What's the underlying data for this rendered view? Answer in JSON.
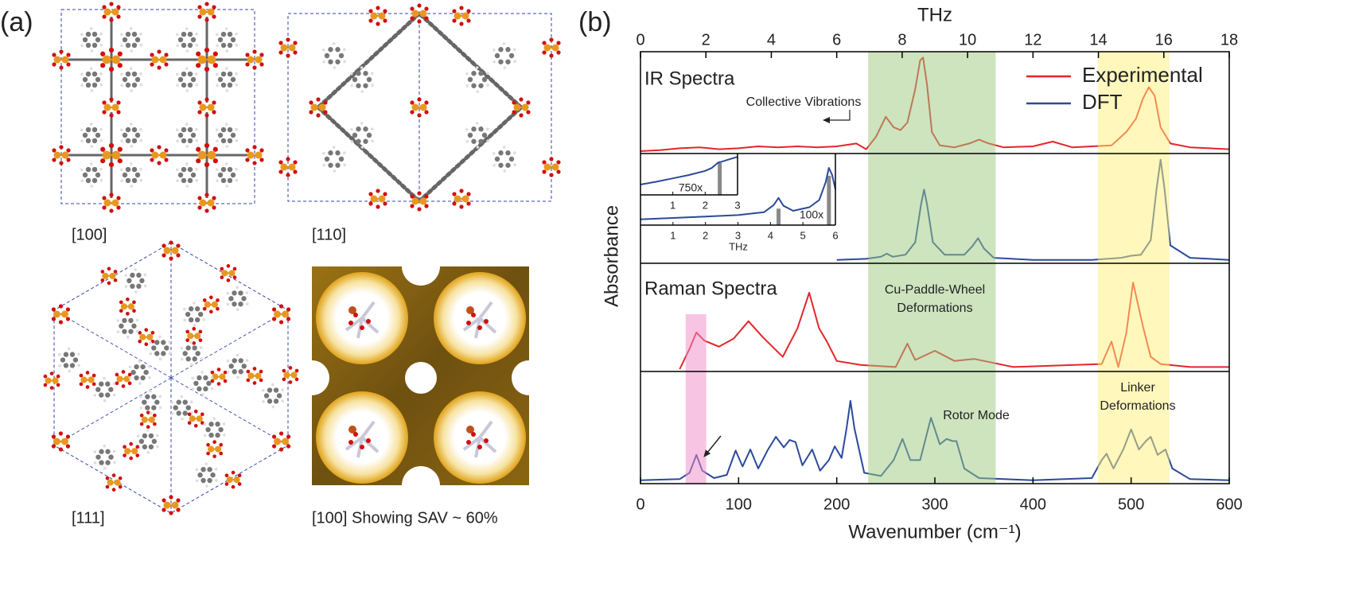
{
  "panel_a": {
    "label": "(a)",
    "views": [
      "[100]",
      "[110]",
      "[111]",
      "[100] Showing SAV ~ 60%"
    ]
  },
  "chart_data": {
    "type": "line",
    "label": "(b)",
    "xlabel": "Wavenumber (cm⁻¹)",
    "x2label": "THz",
    "ylabel": "Absorbance",
    "xlim": [
      0,
      600
    ],
    "xticks": [
      0,
      100,
      200,
      300,
      400,
      500,
      600
    ],
    "x2lim": [
      0,
      18
    ],
    "x2ticks": [
      0,
      2,
      4,
      6,
      8,
      10,
      12,
      14,
      16,
      18
    ],
    "panel_labels": [
      "IR Spectra",
      "Raman Spectra"
    ],
    "legend": "upper right",
    "series": [
      {
        "name": "Experimental",
        "color": "#e3262a",
        "ir": {
          "x": [
            0,
            20,
            40,
            60,
            80,
            100,
            120,
            140,
            160,
            180,
            200,
            220,
            230,
            240,
            250,
            258,
            265,
            272,
            280,
            285,
            288,
            292,
            297,
            305,
            320,
            335,
            345,
            355,
            370,
            400,
            420,
            440,
            460,
            480,
            495,
            505,
            512,
            518,
            524,
            530,
            540,
            560,
            580,
            600
          ],
          "values": [
            0.0,
            0.01,
            0.03,
            0.04,
            0.02,
            0.03,
            0.05,
            0.04,
            0.05,
            0.04,
            0.05,
            0.08,
            0.02,
            0.15,
            0.36,
            0.25,
            0.22,
            0.3,
            0.65,
            0.95,
            0.98,
            0.7,
            0.2,
            0.06,
            0.04,
            0.08,
            0.12,
            0.08,
            0.04,
            0.05,
            0.1,
            0.04,
            0.05,
            0.06,
            0.2,
            0.34,
            0.55,
            0.67,
            0.58,
            0.25,
            0.08,
            0.04,
            0.03,
            0.02
          ]
        },
        "raman": {
          "x": [
            40,
            50,
            57,
            65,
            80,
            95,
            110,
            125,
            145,
            160,
            172,
            182,
            190,
            200,
            225,
            260,
            272,
            280,
            300,
            320,
            340,
            380,
            440,
            470,
            480,
            487,
            495,
            502,
            512,
            520,
            530,
            560,
            600
          ],
          "values": [
            0.0,
            0.2,
            0.36,
            0.28,
            0.22,
            0.3,
            0.47,
            0.31,
            0.12,
            0.4,
            0.75,
            0.4,
            0.27,
            0.08,
            0.04,
            0.02,
            0.25,
            0.09,
            0.18,
            0.08,
            0.1,
            0.02,
            0.04,
            0.05,
            0.27,
            0.02,
            0.35,
            0.85,
            0.42,
            0.12,
            0.05,
            0.02,
            0.02
          ]
        }
      },
      {
        "name": "DFT",
        "color": "#2b4a9a",
        "ir": {
          "x": [
            200,
            230,
            245,
            251,
            257,
            270,
            280,
            286,
            289,
            292,
            298,
            310,
            330,
            338,
            344,
            350,
            360,
            400,
            460,
            490,
            500,
            510,
            520,
            526,
            530,
            534,
            540,
            560,
            600
          ],
          "values": [
            0.01,
            0.02,
            0.04,
            0.07,
            0.04,
            0.06,
            0.18,
            0.55,
            0.69,
            0.55,
            0.18,
            0.06,
            0.06,
            0.14,
            0.22,
            0.12,
            0.03,
            0.01,
            0.01,
            0.03,
            0.05,
            0.06,
            0.2,
            0.7,
            0.98,
            0.7,
            0.15,
            0.03,
            0.01
          ]
        },
        "raman": {
          "x": [
            0,
            40,
            50,
            57,
            63,
            75,
            88,
            97,
            104,
            112,
            120,
            130,
            138,
            146,
            152,
            158,
            165,
            175,
            183,
            192,
            198,
            205,
            210,
            214,
            218,
            228,
            245,
            258,
            267,
            275,
            285,
            296,
            305,
            312,
            318,
            322,
            330,
            345,
            400,
            460,
            470,
            475,
            482,
            492,
            500,
            508,
            515,
            520,
            527,
            535,
            542,
            560,
            600
          ],
          "values": [
            0.01,
            0.02,
            0.08,
            0.25,
            0.1,
            0.03,
            0.06,
            0.29,
            0.14,
            0.3,
            0.12,
            0.3,
            0.42,
            0.32,
            0.39,
            0.37,
            0.15,
            0.3,
            0.1,
            0.2,
            0.33,
            0.22,
            0.5,
            0.76,
            0.5,
            0.08,
            0.05,
            0.2,
            0.4,
            0.2,
            0.2,
            0.6,
            0.35,
            0.4,
            0.38,
            0.38,
            0.12,
            0.03,
            0.01,
            0.03,
            0.2,
            0.26,
            0.12,
            0.3,
            0.49,
            0.3,
            0.38,
            0.42,
            0.25,
            0.3,
            0.12,
            0.02,
            0.01
          ]
        }
      }
    ],
    "bands": [
      {
        "x": [
          232,
          362
        ],
        "color": "#9cc97f"
      },
      {
        "x": [
          466,
          539
        ],
        "color": "#fff07a"
      },
      {
        "x": [
          46,
          67
        ],
        "color": "#f08cc8",
        "raman_only": true
      }
    ],
    "annotations": [
      {
        "lines": [
          "Collective Vibrations"
        ]
      },
      {
        "lines": [
          "Cu-Paddle-Wheel",
          "Deformations"
        ]
      },
      {
        "lines": [
          "Linker",
          "Deformations"
        ]
      },
      {
        "lines": [
          "Rotor Mode"
        ]
      }
    ],
    "inset": {
      "xlabel": "THz",
      "panels": [
        {
          "xlim": [
            0,
            3
          ],
          "xticks": [
            1,
            2,
            3
          ],
          "label": "750x",
          "x": [
            0,
            0.5,
            1,
            1.5,
            2,
            2.2,
            2.4,
            2.5,
            2.7,
            3
          ],
          "values": [
            0.25,
            0.32,
            0.4,
            0.48,
            0.58,
            0.65,
            0.78,
            0.8,
            0.85,
            0.92
          ],
          "bars": {
            "x": [
              2.45
            ],
            "values": [
              0.77
            ]
          }
        },
        {
          "xlim": [
            0,
            6
          ],
          "xticks": [
            1,
            2,
            3,
            4,
            5,
            6
          ],
          "label": "100x",
          "x": [
            0,
            1,
            2,
            3,
            3.8,
            4.1,
            4.25,
            4.4,
            4.7,
            5.2,
            5.5,
            5.7,
            5.8,
            5.9,
            6
          ],
          "values": [
            0.08,
            0.1,
            0.12,
            0.14,
            0.18,
            0.28,
            0.38,
            0.27,
            0.2,
            0.25,
            0.35,
            0.6,
            0.8,
            0.7,
            0.5
          ],
          "bars": {
            "x": [
              4.25,
              5.8
            ],
            "values": [
              0.23,
              0.69
            ]
          }
        }
      ]
    }
  }
}
